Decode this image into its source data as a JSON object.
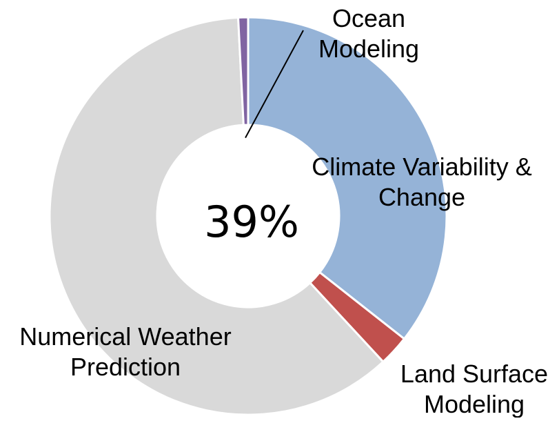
{
  "chart_data": {
    "type": "pie",
    "variant": "donut",
    "center_label": "39%",
    "slices": [
      {
        "label_lines": [
          "Climate Variability &",
          "Change"
        ],
        "value": 35.6,
        "color": "#95b3d7"
      },
      {
        "label_lines": [
          "Land Surface",
          "Modeling"
        ],
        "value": 2.5,
        "color": "#c0504d"
      },
      {
        "label_lines": [
          "Numerical Weather",
          "Prediction"
        ],
        "value": 61.1,
        "color": "#d9d9d9"
      },
      {
        "label_lines": [
          "Ocean",
          "Modeling"
        ],
        "value": 0.8,
        "color": "#8064a2"
      }
    ],
    "legend": "none"
  }
}
